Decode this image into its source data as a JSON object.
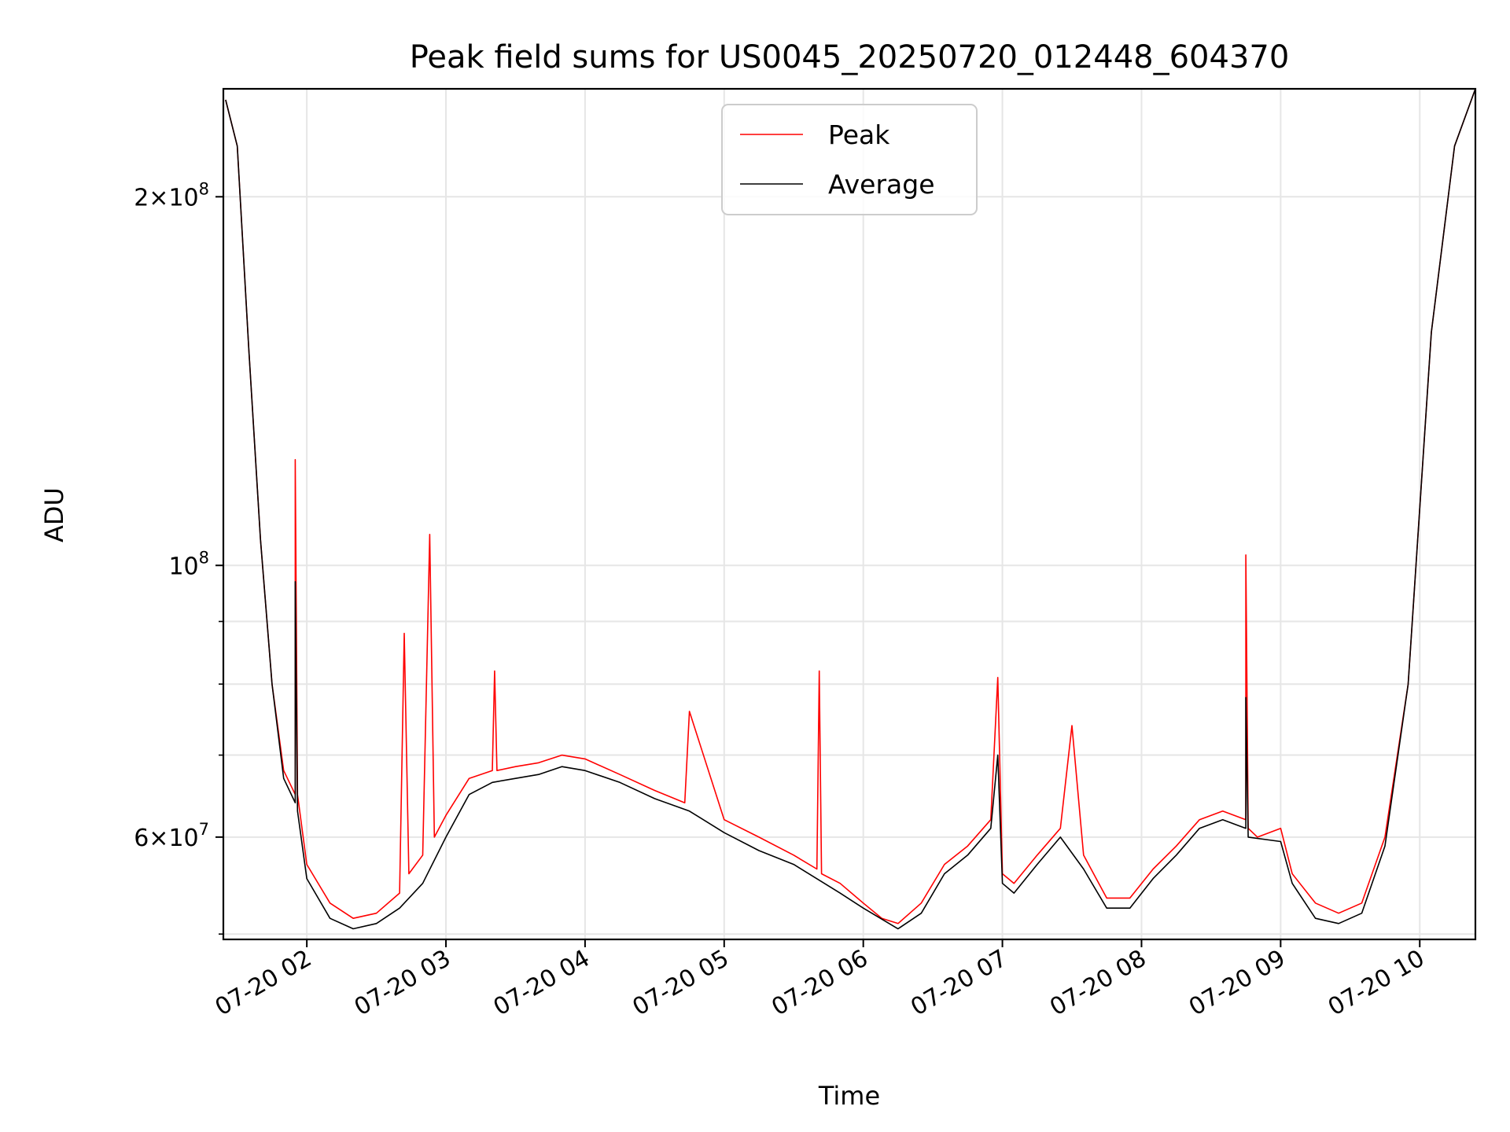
{
  "chart_data": {
    "type": "line",
    "title": "Peak field sums for US0045_20250720_012448_604370",
    "xlabel": "Time",
    "ylabel": "ADU",
    "y_scale": "log",
    "ylim": [
      49500000,
      245000000
    ],
    "xlim": [
      "2025-07-20 01:24",
      "2025-07-20 10:24"
    ],
    "grid": true,
    "legend_position": "top-center",
    "x_tick_labels": [
      "07-20 02",
      "07-20 03",
      "07-20 04",
      "07-20 05",
      "07-20 06",
      "07-20 07",
      "07-20 08",
      "07-20 09",
      "07-20 10"
    ],
    "x_tick_times": [
      "2025-07-20 02:00",
      "2025-07-20 03:00",
      "2025-07-20 04:00",
      "2025-07-20 05:00",
      "2025-07-20 06:00",
      "2025-07-20 07:00",
      "2025-07-20 08:00",
      "2025-07-20 09:00",
      "2025-07-20 10:00"
    ],
    "y_major_ticks": [
      {
        "value": 60000000,
        "mantissa": "6",
        "exponent": "7"
      },
      {
        "value": 100000000,
        "mantissa": "",
        "exponent": "8"
      },
      {
        "value": 200000000,
        "mantissa": "2",
        "exponent": "8"
      }
    ],
    "y_minor_ticks": [
      50000000,
      70000000,
      80000000,
      90000000
    ],
    "series": [
      {
        "name": "Peak",
        "color": "#ff0000",
        "x": [
          "2025-07-20 01:25",
          "2025-07-20 01:30",
          "2025-07-20 01:35",
          "2025-07-20 01:40",
          "2025-07-20 01:45",
          "2025-07-20 01:50",
          "2025-07-20 01:55",
          "2025-07-20 01:55",
          "2025-07-20 01:56",
          "2025-07-20 02:00",
          "2025-07-20 02:10",
          "2025-07-20 02:20",
          "2025-07-20 02:30",
          "2025-07-20 02:40",
          "2025-07-20 02:42",
          "2025-07-20 02:44",
          "2025-07-20 02:50",
          "2025-07-20 02:53",
          "2025-07-20 02:55",
          "2025-07-20 03:00",
          "2025-07-20 03:10",
          "2025-07-20 03:20",
          "2025-07-20 03:21",
          "2025-07-20 03:22",
          "2025-07-20 03:30",
          "2025-07-20 03:40",
          "2025-07-20 03:50",
          "2025-07-20 04:00",
          "2025-07-20 04:15",
          "2025-07-20 04:30",
          "2025-07-20 04:43",
          "2025-07-20 04:45",
          "2025-07-20 05:00",
          "2025-07-20 05:15",
          "2025-07-20 05:30",
          "2025-07-20 05:40",
          "2025-07-20 05:41",
          "2025-07-20 05:42",
          "2025-07-20 05:50",
          "2025-07-20 06:00",
          "2025-07-20 06:08",
          "2025-07-20 06:15",
          "2025-07-20 06:25",
          "2025-07-20 06:35",
          "2025-07-20 06:45",
          "2025-07-20 06:55",
          "2025-07-20 06:58",
          "2025-07-20 07:00",
          "2025-07-20 07:05",
          "2025-07-20 07:15",
          "2025-07-20 07:25",
          "2025-07-20 07:30",
          "2025-07-20 07:35",
          "2025-07-20 07:45",
          "2025-07-20 07:55",
          "2025-07-20 08:05",
          "2025-07-20 08:15",
          "2025-07-20 08:25",
          "2025-07-20 08:35",
          "2025-07-20 08:45",
          "2025-07-20 08:45",
          "2025-07-20 08:46",
          "2025-07-20 08:50",
          "2025-07-20 09:00",
          "2025-07-20 09:05",
          "2025-07-20 09:15",
          "2025-07-20 09:25",
          "2025-07-20 09:35",
          "2025-07-20 09:45",
          "2025-07-20 09:55",
          "2025-07-20 10:05",
          "2025-07-20 10:15",
          "2025-07-20 10:24"
        ],
        "values": [
          240000000,
          220000000,
          150000000,
          105000000,
          80000000,
          68000000,
          65000000,
          122000000,
          65000000,
          57000000,
          53000000,
          51500000,
          52000000,
          54000000,
          88000000,
          56000000,
          58000000,
          106000000,
          60000000,
          62500000,
          67000000,
          68000000,
          82000000,
          68000000,
          68500000,
          69000000,
          70000000,
          69500000,
          67500000,
          65500000,
          64000000,
          76000000,
          62000000,
          60000000,
          58000000,
          56500000,
          82000000,
          56000000,
          55000000,
          53000000,
          51500000,
          51000000,
          53000000,
          57000000,
          59000000,
          62000000,
          81000000,
          56000000,
          55000000,
          58000000,
          61000000,
          74000000,
          58000000,
          53500000,
          53500000,
          56500000,
          59000000,
          62000000,
          63000000,
          62000000,
          102000000,
          61000000,
          60000000,
          61000000,
          56000000,
          53000000,
          52000000,
          53000000,
          60000000,
          80000000,
          155000000,
          220000000,
          245000000
        ]
      },
      {
        "name": "Average",
        "color": "#000000",
        "x": [
          "2025-07-20 01:25",
          "2025-07-20 01:30",
          "2025-07-20 01:35",
          "2025-07-20 01:40",
          "2025-07-20 01:45",
          "2025-07-20 01:50",
          "2025-07-20 01:55",
          "2025-07-20 01:55",
          "2025-07-20 01:56",
          "2025-07-20 02:00",
          "2025-07-20 02:10",
          "2025-07-20 02:20",
          "2025-07-20 02:30",
          "2025-07-20 02:40",
          "2025-07-20 02:50",
          "2025-07-20 03:00",
          "2025-07-20 03:10",
          "2025-07-20 03:20",
          "2025-07-20 03:30",
          "2025-07-20 03:40",
          "2025-07-20 03:50",
          "2025-07-20 04:00",
          "2025-07-20 04:15",
          "2025-07-20 04:30",
          "2025-07-20 04:45",
          "2025-07-20 05:00",
          "2025-07-20 05:15",
          "2025-07-20 05:30",
          "2025-07-20 05:50",
          "2025-07-20 06:00",
          "2025-07-20 06:15",
          "2025-07-20 06:25",
          "2025-07-20 06:35",
          "2025-07-20 06:45",
          "2025-07-20 06:55",
          "2025-07-20 06:58",
          "2025-07-20 07:00",
          "2025-07-20 07:05",
          "2025-07-20 07:15",
          "2025-07-20 07:25",
          "2025-07-20 07:35",
          "2025-07-20 07:45",
          "2025-07-20 07:55",
          "2025-07-20 08:05",
          "2025-07-20 08:15",
          "2025-07-20 08:25",
          "2025-07-20 08:35",
          "2025-07-20 08:45",
          "2025-07-20 08:45",
          "2025-07-20 08:46",
          "2025-07-20 09:00",
          "2025-07-20 09:05",
          "2025-07-20 09:15",
          "2025-07-20 09:25",
          "2025-07-20 09:35",
          "2025-07-20 09:45",
          "2025-07-20 09:55",
          "2025-07-20 10:05",
          "2025-07-20 10:15",
          "2025-07-20 10:24"
        ],
        "values": [
          240000000,
          220000000,
          150000000,
          105000000,
          80000000,
          67000000,
          64000000,
          97000000,
          63000000,
          55500000,
          51500000,
          50500000,
          51000000,
          52500000,
          55000000,
          60000000,
          65000000,
          66500000,
          67000000,
          67500000,
          68500000,
          68000000,
          66500000,
          64500000,
          63000000,
          60500000,
          58500000,
          57000000,
          54000000,
          52500000,
          50500000,
          52000000,
          56000000,
          58000000,
          61000000,
          70000000,
          55000000,
          54000000,
          57000000,
          60000000,
          56500000,
          52500000,
          52500000,
          55500000,
          58000000,
          61000000,
          62000000,
          61000000,
          78000000,
          60000000,
          59500000,
          55000000,
          51500000,
          51000000,
          52000000,
          59000000,
          80000000,
          155000000,
          220000000,
          245000000
        ]
      }
    ]
  }
}
